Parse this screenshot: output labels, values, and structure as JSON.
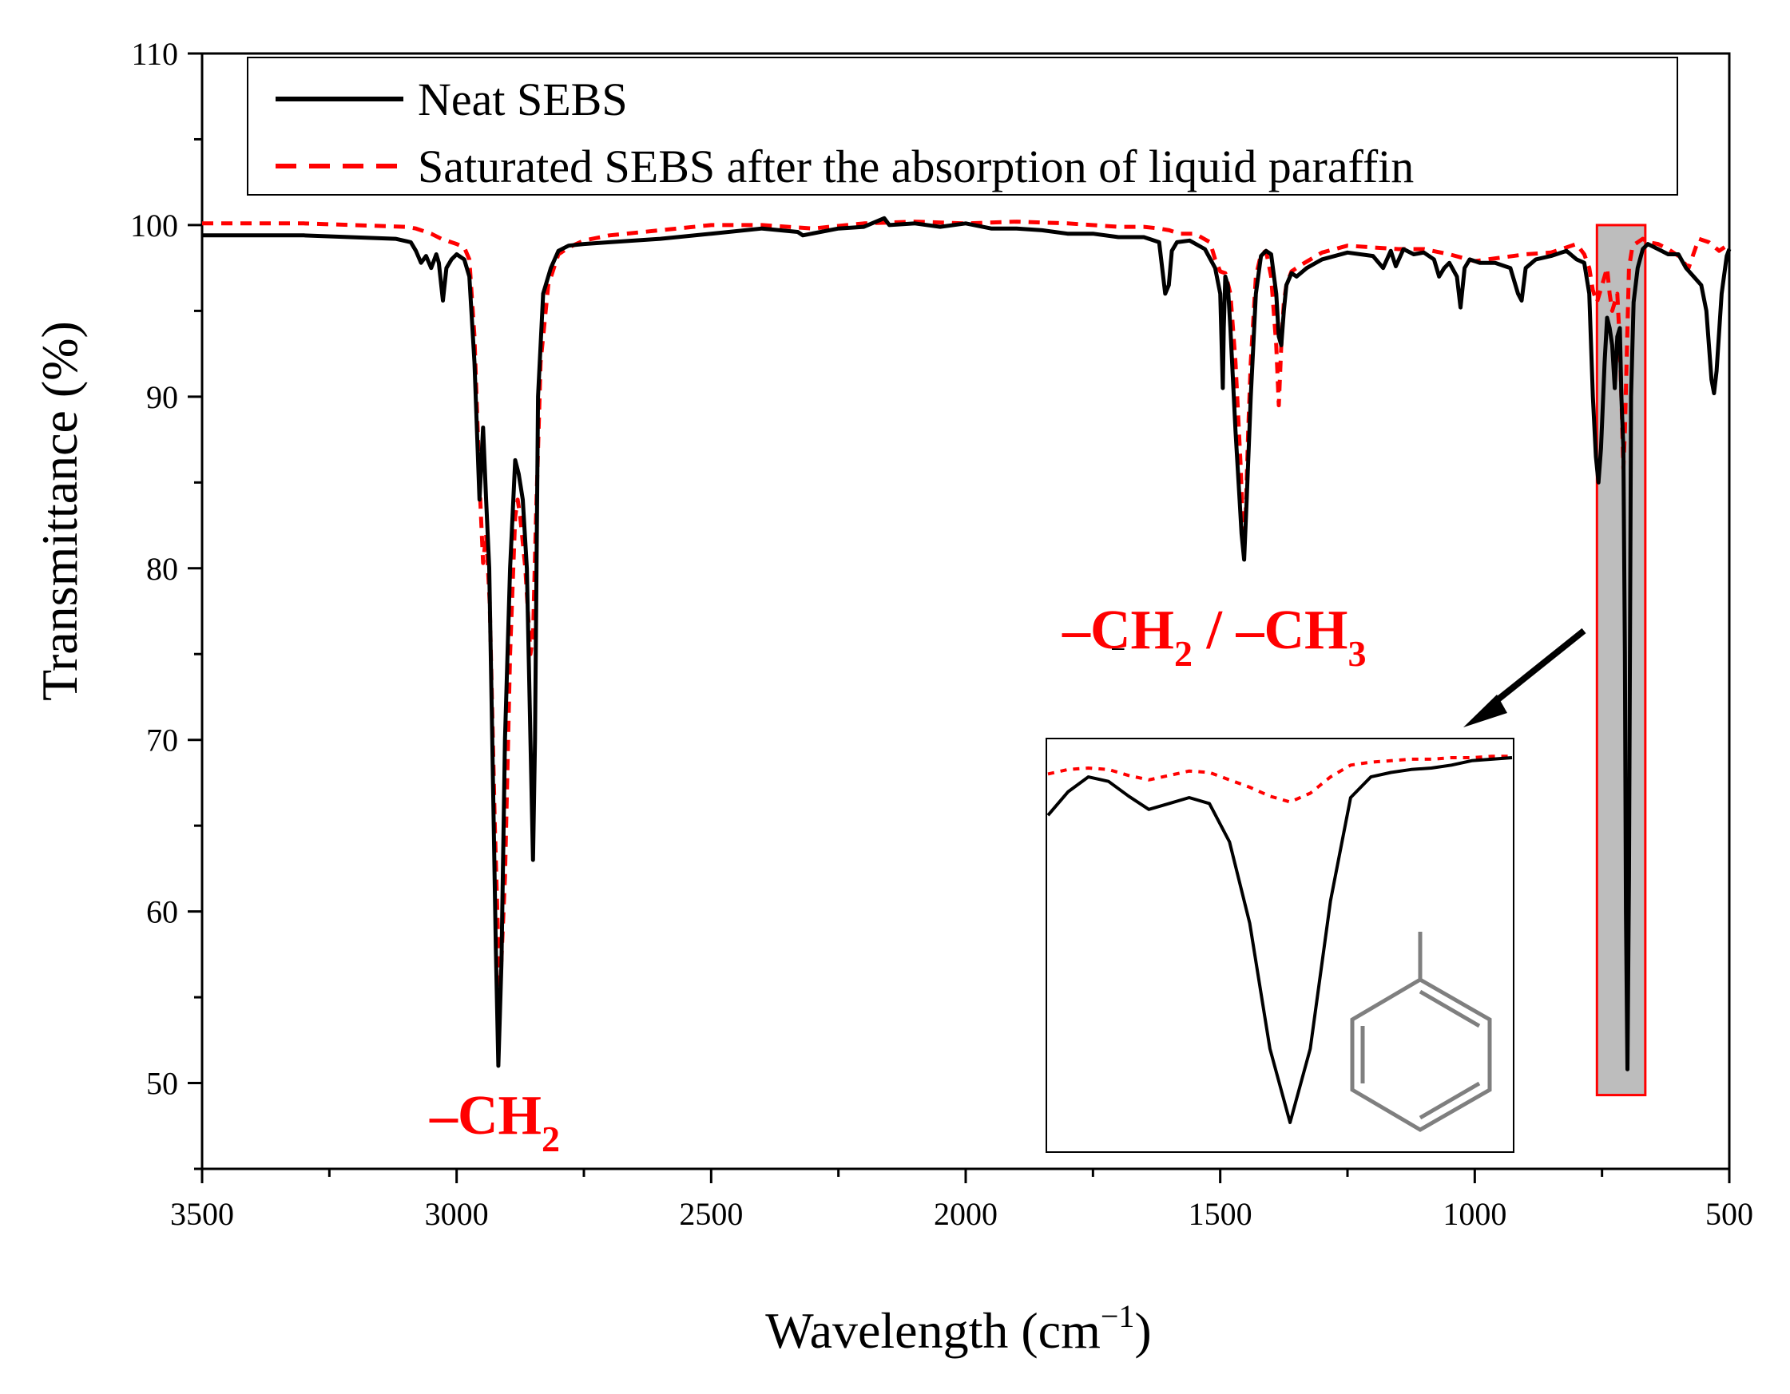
{
  "chart_data": {
    "type": "line",
    "title": "",
    "xlabel": "Wavelength (cm",
    "xlabel_sup": "−1",
    "xlabel_close": ")",
    "ylabel": "Transmittance (%)",
    "xlim": [
      3500,
      500
    ],
    "ylim": [
      45,
      110
    ],
    "x_ticks": [
      "3500",
      "3000",
      "2500",
      "2000",
      "1500",
      "1000",
      "500"
    ],
    "y_ticks": [
      "50",
      "60",
      "70",
      "80",
      "90",
      "100",
      "110"
    ],
    "grid": false,
    "legend_position": "top",
    "colors": {
      "neat": "#000000",
      "saturated": "#ff0000",
      "highlight": "#bdbdbd"
    },
    "series": [
      {
        "name": "Neat SEBS",
        "style": "solid",
        "x": [
          3500,
          3300,
          3120,
          3090,
          3080,
          3070,
          3060,
          3050,
          3040,
          3035,
          3027,
          3020,
          3010,
          3000,
          2985,
          2975,
          2965,
          2955,
          2948,
          2942,
          2936,
          2930,
          2923,
          2918,
          2912,
          2905,
          2895,
          2885,
          2878,
          2870,
          2862,
          2855,
          2850,
          2846,
          2840,
          2830,
          2815,
          2800,
          2780,
          2750,
          2700,
          2600,
          2500,
          2400,
          2330,
          2320,
          2250,
          2200,
          2160,
          2150,
          2100,
          2050,
          2000,
          1950,
          1900,
          1850,
          1800,
          1750,
          1700,
          1650,
          1620,
          1608,
          1601,
          1595,
          1585,
          1560,
          1530,
          1510,
          1500,
          1495,
          1493,
          1490,
          1485,
          1480,
          1470,
          1462,
          1458,
          1453,
          1448,
          1440,
          1430,
          1420,
          1410,
          1400,
          1390,
          1385,
          1380,
          1375,
          1370,
          1360,
          1350,
          1330,
          1300,
          1250,
          1200,
          1180,
          1165,
          1155,
          1140,
          1120,
          1100,
          1080,
          1070,
          1060,
          1050,
          1035,
          1028,
          1020,
          1010,
          990,
          960,
          930,
          915,
          908,
          900,
          880,
          850,
          820,
          800,
          785,
          775,
          768,
          762,
          757,
          752,
          745,
          740,
          735,
          730,
          725,
          720,
          715,
          712,
          708,
          705,
          703,
          700,
          697,
          693,
          688,
          680,
          670,
          660,
          640,
          620,
          600,
          585,
          570,
          555,
          545,
          540,
          535,
          530,
          525,
          515,
          505,
          500
        ],
        "y": [
          99.4,
          99.4,
          99.2,
          99.0,
          98.5,
          97.8,
          98.2,
          97.5,
          98.3,
          97.8,
          95.6,
          97.5,
          98.0,
          98.3,
          98.0,
          97.0,
          92.0,
          84.0,
          88.2,
          84.0,
          80.0,
          70.0,
          58.0,
          51.0,
          57.0,
          70.0,
          80.0,
          86.3,
          85.5,
          84.0,
          80.0,
          70.0,
          63.0,
          70.0,
          90.0,
          96.0,
          97.5,
          98.5,
          98.8,
          98.9,
          99.0,
          99.2,
          99.5,
          99.8,
          99.6,
          99.4,
          99.8,
          99.9,
          100.4,
          100.0,
          100.1,
          99.9,
          100.1,
          99.8,
          99.8,
          99.7,
          99.5,
          99.5,
          99.3,
          99.3,
          99.0,
          96.0,
          96.5,
          98.5,
          99.0,
          99.1,
          98.6,
          97.5,
          96.0,
          90.5,
          94.0,
          97.0,
          96.5,
          94.0,
          88.0,
          84.0,
          82.0,
          80.5,
          84.0,
          90.0,
          96.0,
          98.2,
          98.5,
          98.3,
          96.0,
          93.5,
          93.0,
          95.0,
          96.5,
          97.2,
          97.0,
          97.5,
          98.0,
          98.4,
          98.2,
          97.5,
          98.5,
          97.6,
          98.6,
          98.3,
          98.4,
          98.0,
          97.0,
          97.5,
          97.8,
          97.0,
          95.2,
          97.5,
          98.0,
          97.8,
          97.8,
          97.5,
          96.0,
          95.6,
          97.5,
          98.0,
          98.2,
          98.5,
          98.0,
          97.8,
          96.0,
          90.0,
          86.5,
          85.0,
          87.0,
          92.0,
          94.6,
          94.0,
          93.0,
          90.5,
          93.5,
          94.0,
          90.0,
          87.0,
          75.0,
          60.0,
          50.8,
          62.0,
          90.0,
          95.5,
          97.5,
          98.6,
          98.9,
          98.6,
          98.3,
          98.3,
          97.5,
          97.0,
          96.5,
          95.0,
          93.0,
          91.0,
          90.2,
          91.5,
          96.0,
          98.2,
          98.6
        ]
      },
      {
        "name": "Saturated SEBS after the absorption of liquid paraffin",
        "style": "dashed",
        "x": [
          3500,
          3300,
          3100,
          3080,
          3050,
          3030,
          3000,
          2985,
          2975,
          2965,
          2955,
          2948,
          2942,
          2935,
          2925,
          2915,
          2905,
          2895,
          2885,
          2880,
          2875,
          2865,
          2855,
          2850,
          2845,
          2835,
          2820,
          2800,
          2780,
          2750,
          2700,
          2600,
          2500,
          2400,
          2300,
          2200,
          2100,
          2000,
          1900,
          1800,
          1700,
          1650,
          1620,
          1600,
          1580,
          1550,
          1520,
          1510,
          1500,
          1490,
          1480,
          1470,
          1460,
          1455,
          1450,
          1445,
          1440,
          1430,
          1420,
          1410,
          1400,
          1390,
          1385,
          1380,
          1375,
          1370,
          1360,
          1340,
          1300,
          1250,
          1200,
          1150,
          1100,
          1050,
          1000,
          950,
          900,
          850,
          800,
          785,
          775,
          768,
          760,
          750,
          740,
          735,
          730,
          725,
          720,
          715,
          712,
          708,
          705,
          700,
          697,
          690,
          680,
          670,
          660,
          640,
          620,
          600,
          580,
          560,
          540,
          520,
          500
        ],
        "y": [
          100.1,
          100.1,
          99.9,
          99.8,
          99.5,
          99.2,
          98.9,
          98.7,
          98.0,
          93.5,
          85.0,
          80.3,
          82.0,
          78.0,
          65.0,
          55.0,
          62.0,
          75.0,
          83.0,
          84.0,
          83.0,
          80.0,
          75.0,
          76.0,
          82.0,
          92.0,
          96.5,
          98.3,
          98.7,
          99.1,
          99.4,
          99.7,
          100.0,
          100.0,
          99.8,
          100.1,
          100.2,
          100.1,
          100.2,
          100.1,
          99.9,
          99.9,
          99.8,
          99.7,
          99.5,
          99.5,
          99.0,
          98.0,
          97.3,
          97.2,
          96.0,
          92.0,
          86.0,
          82.0,
          83.0,
          88.0,
          92.0,
          97.0,
          98.3,
          98.5,
          97.0,
          93.0,
          89.5,
          93.0,
          95.5,
          96.5,
          97.3,
          97.7,
          98.4,
          98.8,
          98.7,
          98.6,
          98.6,
          98.3,
          97.9,
          98.1,
          98.3,
          98.4,
          98.9,
          98.3,
          97.5,
          96.2,
          95.5,
          96.5,
          97.5,
          96.0,
          95.0,
          95.5,
          96.0,
          93.0,
          90.0,
          85.8,
          88.0,
          94.0,
          97.5,
          98.8,
          99.0,
          99.2,
          99.0,
          98.9,
          98.6,
          98.2,
          97.5,
          99.2,
          99.0,
          98.5,
          98.9
        ]
      }
    ],
    "annotations": [
      {
        "label": "–CH",
        "sub": "2",
        "color": "#ff0000"
      },
      {
        "label": "–CH",
        "sub": "2",
        "label2": " / –CH",
        "sub2": "3",
        "color": "#ff0000"
      },
      {
        "label": "–",
        "color": "#000000"
      }
    ],
    "highlight_region": {
      "x_range": [
        760,
        665
      ],
      "y_range": [
        49.3,
        100
      ]
    },
    "inset": {
      "description": "zoom of highlighted band near 700 cm-1 with benzene ring (styrene) structure",
      "neat": [
        67.8,
        69.4,
        70.4,
        70.1,
        69.1,
        68.2,
        68.6,
        69.0,
        68.6,
        66.0,
        60.5,
        52.0,
        47.0,
        52.0,
        62.0,
        69.0,
        70.4,
        70.7,
        70.9,
        71.0,
        71.2,
        71.5,
        71.6,
        71.7
      ],
      "saturated": [
        70.6,
        70.9,
        71.0,
        70.9,
        70.5,
        70.2,
        70.5,
        70.8,
        70.7,
        70.2,
        69.7,
        69.1,
        68.7,
        69.3,
        70.4,
        71.2,
        71.4,
        71.5,
        71.6,
        71.6,
        71.7,
        71.7,
        71.8,
        71.8
      ]
    }
  }
}
